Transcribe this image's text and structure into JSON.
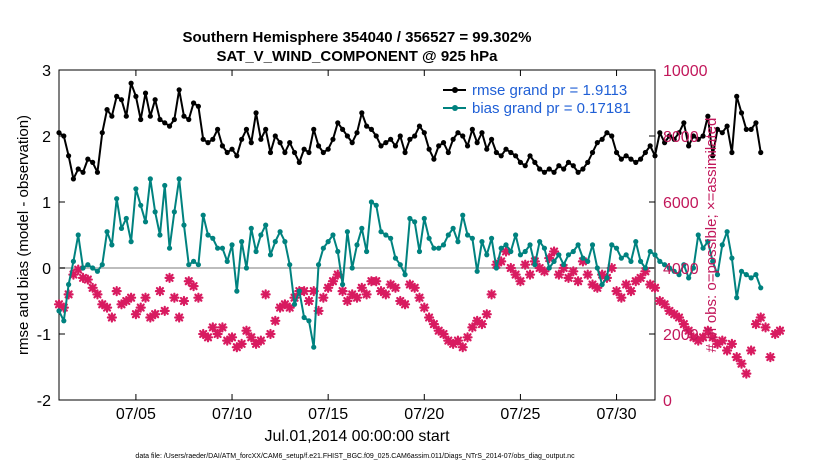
{
  "chart_data": {
    "type": "line",
    "title_line1": "Southern Hemisphere 354040 / 356527 = 99.302%",
    "title_line2": "SAT_V_WIND_COMPONENT @ 925 hPa",
    "ylabel_left": "rmse and bias (model - observation)",
    "ylabel_right": "# of obs: o=possible; ×=assimilated",
    "xlabel": "Jul.01,2014 00:00:00 start",
    "footnote": "data file: /Users/raeder/DAI/ATM_forcXX/CAM6_setup/f.e21.FHIST_BGC.f09_025.CAM6assim.011/Diags_NTrS_2014-07/obs_diag_output.nc",
    "ylim_left": [
      -2,
      3
    ],
    "yticks_left": [
      -2,
      -1,
      0,
      1,
      2,
      3
    ],
    "ylim_right": [
      0,
      10000
    ],
    "yticks_right": [
      0,
      2000,
      4000,
      6000,
      8000,
      10000
    ],
    "xlim": [
      1,
      32
    ],
    "xticks": [
      5,
      10,
      15,
      20,
      25,
      30
    ],
    "xtick_labels": [
      "07/05",
      "07/10",
      "07/15",
      "07/20",
      "07/25",
      "07/30"
    ],
    "colors": {
      "rmse": "#000000",
      "bias": "#00827f",
      "obs": "#d81b60",
      "zero_line": "#bdbdbd",
      "legend_text": "#1f5fd6"
    },
    "legend_position": "top-right",
    "series": [
      {
        "name": "rmse grand pr = 1.9113",
        "key": "rmse",
        "x_start": 1.0,
        "x_step": 0.25,
        "values": [
          2.05,
          2.0,
          1.7,
          1.35,
          1.5,
          1.45,
          1.65,
          1.6,
          1.45,
          2.05,
          2.4,
          2.3,
          2.6,
          2.55,
          2.3,
          2.8,
          2.6,
          2.25,
          2.65,
          2.3,
          2.55,
          2.25,
          2.2,
          2.15,
          2.25,
          2.7,
          2.3,
          2.25,
          2.5,
          2.45,
          1.95,
          1.9,
          1.95,
          2.1,
          1.85,
          1.75,
          1.8,
          1.7,
          1.95,
          2.1,
          1.9,
          2.35,
          1.95,
          2.1,
          1.75,
          2.0,
          1.9,
          1.75,
          1.9,
          1.75,
          1.6,
          1.8,
          1.75,
          2.1,
          1.85,
          1.75,
          1.8,
          1.95,
          2.2,
          2.1,
          2.0,
          1.9,
          2.05,
          2.35,
          2.15,
          2.1,
          2.0,
          1.85,
          1.9,
          1.95,
          1.85,
          2.0,
          1.75,
          1.95,
          2.0,
          2.15,
          2.05,
          1.8,
          1.65,
          1.85,
          1.9,
          1.75,
          1.95,
          2.05,
          2.0,
          1.85,
          2.1,
          1.9,
          2.05,
          1.8,
          1.95,
          1.75,
          1.7,
          1.8,
          1.75,
          1.7,
          1.6,
          1.55,
          1.7,
          1.6,
          1.5,
          1.45,
          1.5,
          1.45,
          1.55,
          1.5,
          1.6,
          1.55,
          1.45,
          1.5,
          1.6,
          1.75,
          1.9,
          1.95,
          2.05,
          2.0,
          1.75,
          1.65,
          1.7,
          1.65,
          1.6,
          1.65,
          1.75,
          1.85,
          1.7,
          2.05,
          1.9,
          2.0,
          1.95,
          2.05,
          2.2,
          1.85,
          2.0,
          1.95,
          2.0,
          2.3,
          1.7,
          2.1,
          2.05,
          2.15,
          1.75,
          2.6,
          2.35,
          2.1,
          2.1,
          2.2,
          1.75
        ]
      },
      {
        "name": "bias grand pr = 0.17181",
        "key": "bias",
        "x_start": 1.0,
        "x_step": 0.25,
        "values": [
          -0.65,
          -0.8,
          -0.25,
          0.1,
          0.5,
          0.0,
          0.05,
          0.0,
          -0.05,
          0.05,
          0.55,
          0.35,
          1.05,
          0.6,
          0.75,
          0.4,
          1.2,
          0.95,
          0.7,
          1.35,
          0.85,
          0.5,
          1.25,
          0.3,
          0.85,
          1.35,
          0.65,
          0.05,
          0.1,
          0.05,
          0.8,
          0.5,
          0.45,
          0.3,
          0.3,
          0.1,
          0.35,
          -0.35,
          0.4,
          0.0,
          0.6,
          0.25,
          0.5,
          0.65,
          0.2,
          0.4,
          0.55,
          0.4,
          0.05,
          -0.55,
          -0.35,
          -0.75,
          -0.8,
          -1.2,
          0.05,
          0.3,
          0.4,
          0.5,
          0.25,
          -0.25,
          0.55,
          0.0,
          0.35,
          0.6,
          0.25,
          1.0,
          0.95,
          0.55,
          0.5,
          0.45,
          0.15,
          0.05,
          -0.1,
          0.75,
          0.7,
          0.25,
          0.75,
          0.45,
          0.3,
          0.3,
          0.35,
          0.5,
          0.6,
          0.4,
          0.8,
          0.5,
          0.45,
          -0.05,
          0.4,
          0.2,
          0.45,
          0.0,
          0.3,
          0.35,
          0.25,
          0.5,
          0.2,
          0.25,
          0.35,
          0.05,
          0.4,
          0.3,
          0.0,
          0.1,
          0.2,
          0.05,
          0.2,
          0.25,
          0.35,
          0.15,
          0.1,
          0.35,
          0.0,
          -0.25,
          -0.15,
          0.35,
          0.3,
          0.15,
          0.2,
          0.1,
          0.4,
          0.1,
          0.0,
          0.25,
          0.2,
          0.1,
          0.05,
          0.0,
          -0.05,
          -0.1,
          0.05,
          -0.15,
          0.0,
          0.5,
          0.3,
          0.4,
          0.1,
          -0.1,
          0.35,
          0.55,
          0.15,
          -0.45,
          -0.05,
          -0.1,
          -0.15,
          -0.1,
          -0.3
        ]
      },
      {
        "name": "# of obs",
        "key": "obs",
        "x_start": 1.0,
        "x_step": 0.25,
        "values": [
          2900,
          2800,
          3200,
          3800,
          3950,
          3700,
          3650,
          3400,
          3200,
          2900,
          2800,
          2500,
          3300,
          2900,
          3000,
          3100,
          2600,
          2800,
          3100,
          2500,
          2600,
          3300,
          2700,
          3700,
          3100,
          2500,
          3000,
          3600,
          3450,
          3100,
          2000,
          1900,
          2200,
          2000,
          2200,
          1800,
          1900,
          1600,
          1700,
          2100,
          1900,
          1700,
          1800,
          3200,
          2000,
          2400,
          2800,
          2900,
          2800,
          3100,
          3300,
          3300,
          3000,
          3300,
          2700,
          3100,
          3400,
          3600,
          3800,
          3300,
          3000,
          3200,
          3100,
          3400,
          3200,
          3600,
          3600,
          3300,
          3200,
          3500,
          3400,
          3000,
          2900,
          3500,
          3400,
          3100,
          2800,
          2500,
          2300,
          2100,
          2000,
          1800,
          1700,
          1800,
          1600,
          1900,
          2200,
          2400,
          2300,
          2600,
          3200,
          4100,
          4200,
          4500,
          4000,
          3800,
          3600,
          4100,
          3800,
          4200,
          4000,
          3900,
          4300,
          4500,
          3800,
          4000,
          3700,
          3900,
          3600,
          4200,
          3800,
          3500,
          3400,
          3800,
          3700,
          4000,
          3300,
          3100,
          3500,
          3300,
          3600,
          3700,
          3900,
          3500,
          3400,
          3000,
          2900,
          2700,
          2600,
          2500,
          2300,
          2100,
          1900,
          1800,
          1900,
          2100,
          1900,
          1700,
          1800,
          1500,
          1700,
          1300,
          1100,
          800,
          1500,
          2300,
          2500,
          2200,
          1300,
          2000,
          2100
        ]
      }
    ]
  }
}
